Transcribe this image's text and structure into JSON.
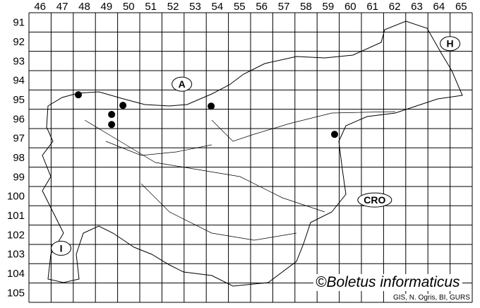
{
  "columns": [
    "46",
    "47",
    "48",
    "49",
    "50",
    "51",
    "52",
    "53",
    "54",
    "55",
    "56",
    "57",
    "58",
    "59",
    "60",
    "61",
    "62",
    "63",
    "64",
    "65"
  ],
  "rows": [
    "91",
    "92",
    "93",
    "94",
    "95",
    "96",
    "97",
    "98",
    "99",
    "100",
    "101",
    "102",
    "103",
    "104",
    "105"
  ],
  "country_labels": [
    {
      "text": "A",
      "col": 52.9,
      "row": 94.7
    },
    {
      "text": "H",
      "col": 65.0,
      "row": 92.6
    },
    {
      "text": "CRO",
      "col": 61.6,
      "row": 100.7
    },
    {
      "text": "I",
      "col": 47.45,
      "row": 103.2
    }
  ],
  "records": [
    {
      "col": 48.23,
      "row": 95.25
    },
    {
      "col": 50.24,
      "row": 95.8
    },
    {
      "col": 49.73,
      "row": 96.27
    },
    {
      "col": 49.73,
      "row": 96.79
    },
    {
      "col": 54.22,
      "row": 95.84
    },
    {
      "col": 59.79,
      "row": 97.3
    }
  ],
  "credit": "©Boletus informaticus",
  "source": "GIS, N. Ogris, BI, GURS",
  "colors": {
    "grid": "#000000",
    "border": "#000000",
    "record": "#000000"
  }
}
